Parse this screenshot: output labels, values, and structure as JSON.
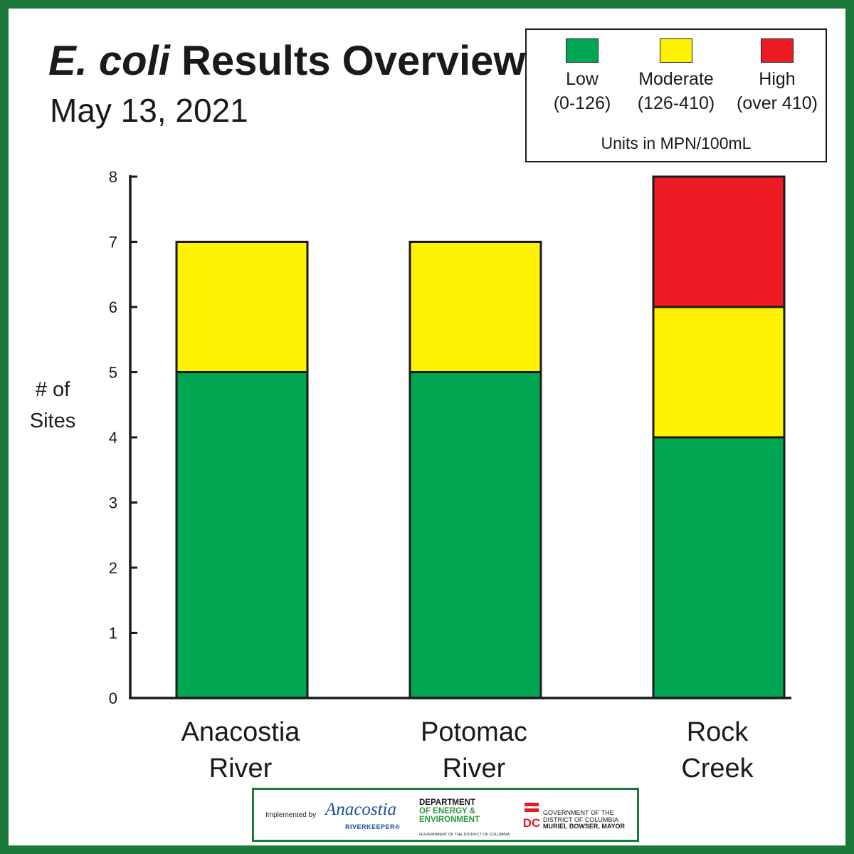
{
  "title": {
    "italic": "E. coli",
    "rest": "Results Overview"
  },
  "subtitle": "May 13, 2021",
  "legend": {
    "items": [
      {
        "label": "Low",
        "range": "(0-126)",
        "color": "#00a651"
      },
      {
        "label": "Moderate",
        "range": "(126-410)",
        "color": "#fff200"
      },
      {
        "label": "High",
        "range": "(over 410)",
        "color": "#ed1c24"
      }
    ],
    "units": "Units in MPN/100mL"
  },
  "chart_data": {
    "type": "bar",
    "stacked": true,
    "categories": [
      "Anacostia River",
      "Potomac River",
      "Rock Creek"
    ],
    "category_lines": [
      [
        "Anacostia",
        "River"
      ],
      [
        "Potomac",
        "River"
      ],
      [
        "Rock",
        "Creek"
      ]
    ],
    "series": [
      {
        "name": "Low (0-126)",
        "color": "#00a651",
        "values": [
          5,
          5,
          4
        ]
      },
      {
        "name": "Moderate (126-410)",
        "color": "#fff200",
        "values": [
          2,
          2,
          2
        ]
      },
      {
        "name": "High (over 410)",
        "color": "#ed1c24",
        "values": [
          0,
          0,
          2
        ]
      }
    ],
    "ylabel_lines": [
      "# of",
      "Sites"
    ],
    "ylim": [
      0,
      8
    ],
    "yticks": [
      "0",
      "1",
      "2",
      "3",
      "4",
      "5",
      "6",
      "7",
      "8"
    ],
    "legend_position": "top-right"
  },
  "footer": {
    "implemented_by": "Implemented by",
    "riverkeeper_name": "Anacostia",
    "riverkeeper_sub": "RIVERKEEPER®",
    "doee_line1": "DEPARTMENT",
    "doee_line2": "OF ENERGY &",
    "doee_line3": "ENVIRONMENT",
    "doee_sub": "GOVERNMENT OF THE DISTRICT OF COLUMBIA",
    "gov_line1": "GOVERNMENT OF THE",
    "gov_line2": "DISTRICT OF COLUMBIA",
    "mayor": "MURIEL BOWSER, MAYOR"
  }
}
